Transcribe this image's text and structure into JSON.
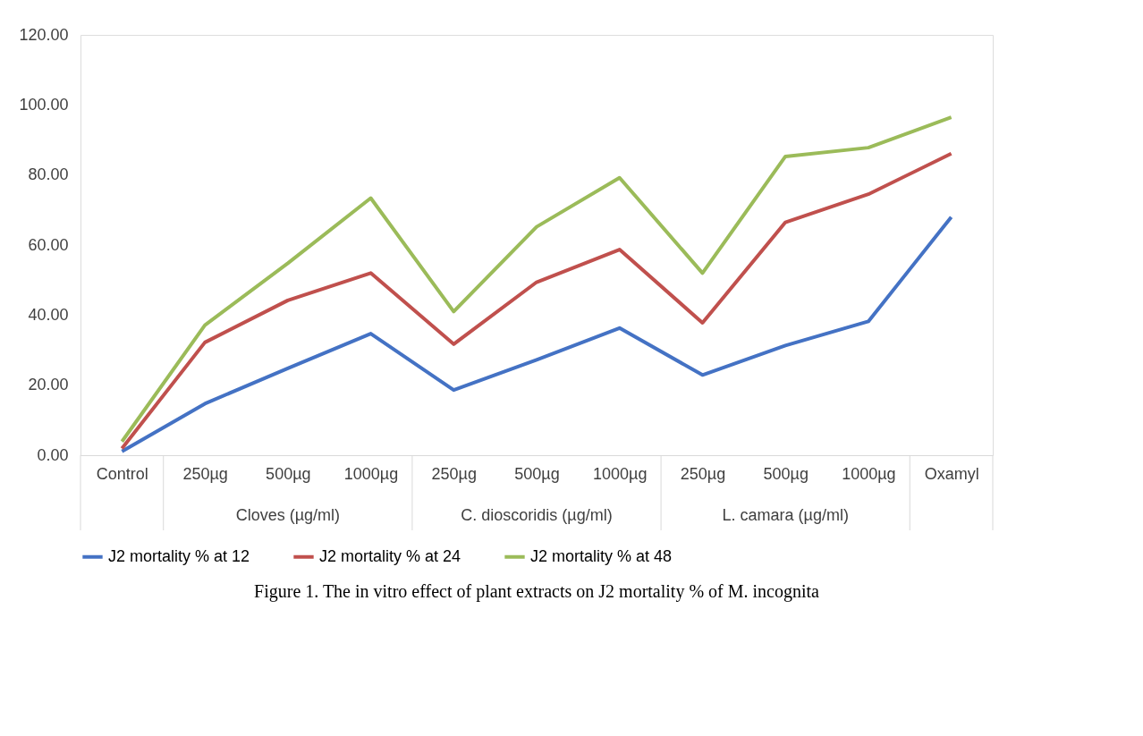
{
  "chart_data": {
    "type": "line",
    "title": "Figure 1. The in vitro effect of plant extracts on J2 mortality % of M. incognita",
    "categories": [
      "Control",
      "250µg",
      "500µg",
      "1000µg",
      "250µg",
      "500µg",
      "1000µg",
      "250µg",
      "500µg",
      "1000µg",
      "Oxamyl"
    ],
    "annotations": [
      "Cloves (µg/ml)",
      "C. dioscoridis (µg/ml)",
      "L. camara (µg/ml)"
    ],
    "series": [
      {
        "name": "J2 mortality % at 12",
        "color": "#4472c4",
        "values": [
          1.1,
          14.7,
          24.8,
          34.7,
          18.6,
          27.2,
          36.3,
          22.9,
          31.3,
          38.2,
          68.0
        ]
      },
      {
        "name": "J2 mortality % at 24",
        "color": "#c0504d",
        "values": [
          1.9,
          32.2,
          44.2,
          52.0,
          31.7,
          49.4,
          58.7,
          37.8,
          66.5,
          74.5,
          86.1
        ]
      },
      {
        "name": "J2 mortality % at 48",
        "color": "#9bbb59",
        "values": [
          3.9,
          37.1,
          54.8,
          73.4,
          41.0,
          65.2,
          79.2,
          52.0,
          85.3,
          87.8,
          96.5
        ]
      }
    ],
    "ylim": [
      0,
      120
    ],
    "yticks": [
      {
        "value": 0,
        "label": "0.00"
      },
      {
        "value": 20,
        "label": "20.00"
      },
      {
        "value": 40,
        "label": "40.00"
      },
      {
        "value": 60,
        "label": "60.00"
      },
      {
        "value": 80,
        "label": "80.00"
      },
      {
        "value": 100,
        "label": "100.00"
      },
      {
        "value": 120,
        "label": "120.00"
      }
    ],
    "grid": false,
    "legend": "bottom",
    "marker": "none",
    "line_style": "solid"
  }
}
